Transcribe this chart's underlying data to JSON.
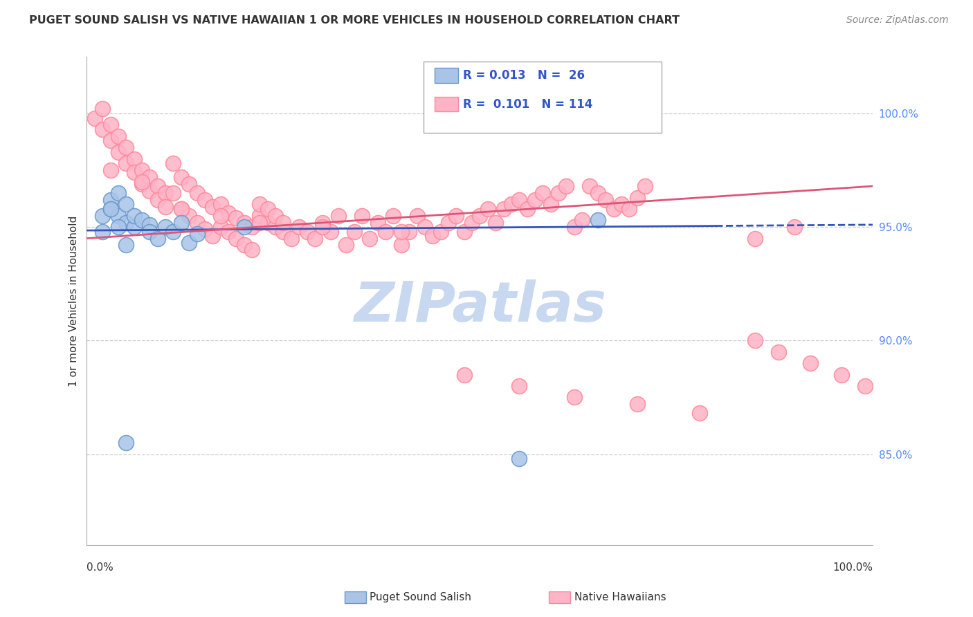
{
  "title": "PUGET SOUND SALISH VS NATIVE HAWAIIAN 1 OR MORE VEHICLES IN HOUSEHOLD CORRELATION CHART",
  "source": "Source: ZipAtlas.com",
  "ylabel": "1 or more Vehicles in Household",
  "xlim": [
    0.0,
    100.0
  ],
  "ylim": [
    81.0,
    102.5
  ],
  "yticks": [
    85.0,
    90.0,
    95.0,
    100.0
  ],
  "ytick_labels": [
    "85.0%",
    "90.0%",
    "95.0%",
    "100.0%"
  ],
  "blue_face": "#AAC4E8",
  "blue_edge": "#6699CC",
  "blue_line": "#3355BB",
  "pink_face": "#FFB3C6",
  "pink_edge": "#FF8899",
  "pink_line": "#DD5577",
  "watermark_color": "#C8D8F0",
  "blue_x": [
    2,
    2,
    3,
    3,
    4,
    4,
    5,
    5,
    6,
    6,
    7,
    8,
    8,
    9,
    10,
    11,
    12,
    13,
    14,
    20,
    55,
    65,
    3,
    4,
    5,
    5
  ],
  "blue_y": [
    95.5,
    94.8,
    96.2,
    95.8,
    96.5,
    95.5,
    95.2,
    96.0,
    95.0,
    95.5,
    95.3,
    95.1,
    94.8,
    94.5,
    95.0,
    94.8,
    95.2,
    94.3,
    94.7,
    95.0,
    84.8,
    95.3,
    95.8,
    95.0,
    85.5,
    94.2
  ],
  "pink_x": [
    1,
    2,
    2,
    3,
    3,
    4,
    4,
    5,
    5,
    6,
    6,
    7,
    7,
    8,
    8,
    9,
    9,
    10,
    10,
    11,
    11,
    12,
    12,
    13,
    13,
    14,
    14,
    15,
    15,
    16,
    16,
    17,
    17,
    18,
    18,
    19,
    19,
    20,
    20,
    21,
    21,
    22,
    22,
    23,
    23,
    24,
    24,
    25,
    25,
    26,
    27,
    28,
    29,
    30,
    31,
    32,
    33,
    34,
    35,
    36,
    37,
    38,
    39,
    40,
    41,
    42,
    43,
    44,
    45,
    46,
    47,
    48,
    49,
    50,
    51,
    52,
    53,
    54,
    55,
    56,
    57,
    58,
    59,
    60,
    61,
    62,
    63,
    64,
    65,
    66,
    67,
    68,
    69,
    70,
    71,
    85,
    90,
    3,
    7,
    12,
    17,
    22,
    30,
    40,
    48,
    55,
    62,
    70,
    78,
    85,
    88,
    92,
    96,
    99
  ],
  "pink_y": [
    99.8,
    100.2,
    99.3,
    99.5,
    98.8,
    99.0,
    98.3,
    98.5,
    97.8,
    98.0,
    97.4,
    97.5,
    96.9,
    97.2,
    96.6,
    96.8,
    96.2,
    96.5,
    95.9,
    97.8,
    96.5,
    97.2,
    95.8,
    96.9,
    95.5,
    96.5,
    95.2,
    96.2,
    94.9,
    95.9,
    94.6,
    96.0,
    95.0,
    95.6,
    94.8,
    95.4,
    94.5,
    95.2,
    94.2,
    95.0,
    94.0,
    95.5,
    96.0,
    95.2,
    95.8,
    95.0,
    95.5,
    94.8,
    95.2,
    94.5,
    95.0,
    94.8,
    94.5,
    95.2,
    94.8,
    95.5,
    94.2,
    94.8,
    95.5,
    94.5,
    95.2,
    94.8,
    95.5,
    94.2,
    94.8,
    95.5,
    95.0,
    94.6,
    94.8,
    95.2,
    95.5,
    94.8,
    95.2,
    95.5,
    95.8,
    95.2,
    95.8,
    96.0,
    96.2,
    95.8,
    96.2,
    96.5,
    96.0,
    96.5,
    96.8,
    95.0,
    95.3,
    96.8,
    96.5,
    96.2,
    95.8,
    96.0,
    95.8,
    96.3,
    96.8,
    94.5,
    95.0,
    97.5,
    97.0,
    95.8,
    95.5,
    95.2,
    95.0,
    94.8,
    88.5,
    88.0,
    87.5,
    87.2,
    86.8,
    90.0,
    89.5,
    89.0,
    88.5,
    88.0
  ]
}
